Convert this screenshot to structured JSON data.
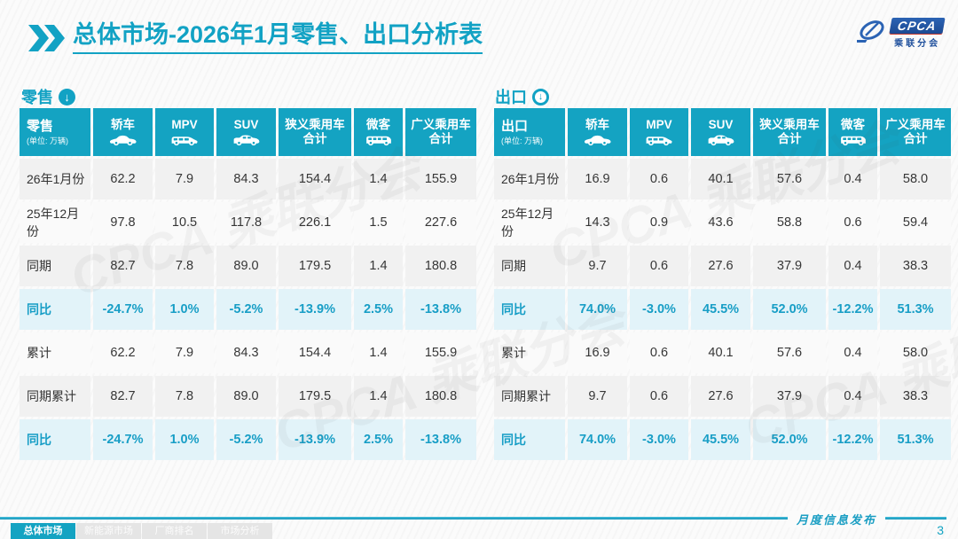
{
  "header": {
    "title_primary": "总体市场",
    "title_rest": "-2026年1月零售、出口分析表"
  },
  "logo": {
    "acronym": "CPCA",
    "name_cn": "乘联分会"
  },
  "icons": {
    "section_down_arrow": "↓"
  },
  "watermark": {
    "text": "CPCA 乘联分会"
  },
  "footer": {
    "label": "月度信息发布",
    "page_number": "3"
  },
  "nav": {
    "tabs": [
      {
        "label": "总体市场",
        "active": true
      },
      {
        "label": "新能源市场",
        "active": false
      },
      {
        "label": "厂商排名",
        "active": false
      },
      {
        "label": "市场分析",
        "active": false
      }
    ]
  },
  "colors": {
    "accent_teal": "#14A3C2",
    "yoy_row_bg": "#E2F3F9",
    "yoy_text": "#189EC6"
  },
  "tables": [
    {
      "id": "retail",
      "section_label": "零售",
      "section_icon": "circle-down-arrow-filled-icon",
      "corner_title": "零售",
      "corner_unit": "(单位: 万辆)",
      "columns": [
        {
          "label": "轿车",
          "icon": "sedan-icon"
        },
        {
          "label": "MPV",
          "icon": "mpv-icon"
        },
        {
          "label": "SUV",
          "icon": "suv-icon"
        },
        {
          "label": "狭义乘用车合计",
          "icon": ""
        },
        {
          "label": "微客",
          "icon": "microvan-icon"
        },
        {
          "label": "广义乘用车合计",
          "icon": ""
        }
      ],
      "rows": [
        {
          "label": "26年1月份",
          "type": "data",
          "values": [
            "62.2",
            "7.9",
            "84.3",
            "154.4",
            "1.4",
            "155.9"
          ]
        },
        {
          "label": "25年12月份",
          "type": "data",
          "values": [
            "97.8",
            "10.5",
            "117.8",
            "226.1",
            "1.5",
            "227.6"
          ]
        },
        {
          "label": "同期",
          "type": "data",
          "values": [
            "82.7",
            "7.8",
            "89.0",
            "179.5",
            "1.4",
            "180.8"
          ]
        },
        {
          "label": "同比",
          "type": "yoy",
          "values": [
            "-24.7%",
            "1.0%",
            "-5.2%",
            "-13.9%",
            "2.5%",
            "-13.8%"
          ]
        },
        {
          "label": "累计",
          "type": "data",
          "values": [
            "62.2",
            "7.9",
            "84.3",
            "154.4",
            "1.4",
            "155.9"
          ]
        },
        {
          "label": "同期累计",
          "type": "data",
          "values": [
            "82.7",
            "7.8",
            "89.0",
            "179.5",
            "1.4",
            "180.8"
          ]
        },
        {
          "label": "同比",
          "type": "yoy",
          "values": [
            "-24.7%",
            "1.0%",
            "-5.2%",
            "-13.9%",
            "2.5%",
            "-13.8%"
          ]
        }
      ]
    },
    {
      "id": "export",
      "section_label": "出口",
      "section_icon": "circle-down-arrow-outline-icon",
      "corner_title": "出口",
      "corner_unit": "(单位: 万辆)",
      "columns": [
        {
          "label": "轿车",
          "icon": "sedan-icon"
        },
        {
          "label": "MPV",
          "icon": "mpv-icon"
        },
        {
          "label": "SUV",
          "icon": "suv-icon"
        },
        {
          "label": "狭义乘用车合计",
          "icon": ""
        },
        {
          "label": "微客",
          "icon": "microvan-icon"
        },
        {
          "label": "广义乘用车合计",
          "icon": ""
        }
      ],
      "rows": [
        {
          "label": "26年1月份",
          "type": "data",
          "values": [
            "16.9",
            "0.6",
            "40.1",
            "57.6",
            "0.4",
            "58.0"
          ]
        },
        {
          "label": "25年12月份",
          "type": "data",
          "values": [
            "14.3",
            "0.9",
            "43.6",
            "58.8",
            "0.6",
            "59.4"
          ]
        },
        {
          "label": "同期",
          "type": "data",
          "values": [
            "9.7",
            "0.6",
            "27.6",
            "37.9",
            "0.4",
            "38.3"
          ]
        },
        {
          "label": "同比",
          "type": "yoy",
          "values": [
            "74.0%",
            "-3.0%",
            "45.5%",
            "52.0%",
            "-12.2%",
            "51.3%"
          ]
        },
        {
          "label": "累计",
          "type": "data",
          "values": [
            "16.9",
            "0.6",
            "40.1",
            "57.6",
            "0.4",
            "58.0"
          ]
        },
        {
          "label": "同期累计",
          "type": "data",
          "values": [
            "9.7",
            "0.6",
            "27.6",
            "37.9",
            "0.4",
            "38.3"
          ]
        },
        {
          "label": "同比",
          "type": "yoy",
          "values": [
            "74.0%",
            "-3.0%",
            "45.5%",
            "52.0%",
            "-12.2%",
            "51.3%"
          ]
        }
      ]
    }
  ]
}
